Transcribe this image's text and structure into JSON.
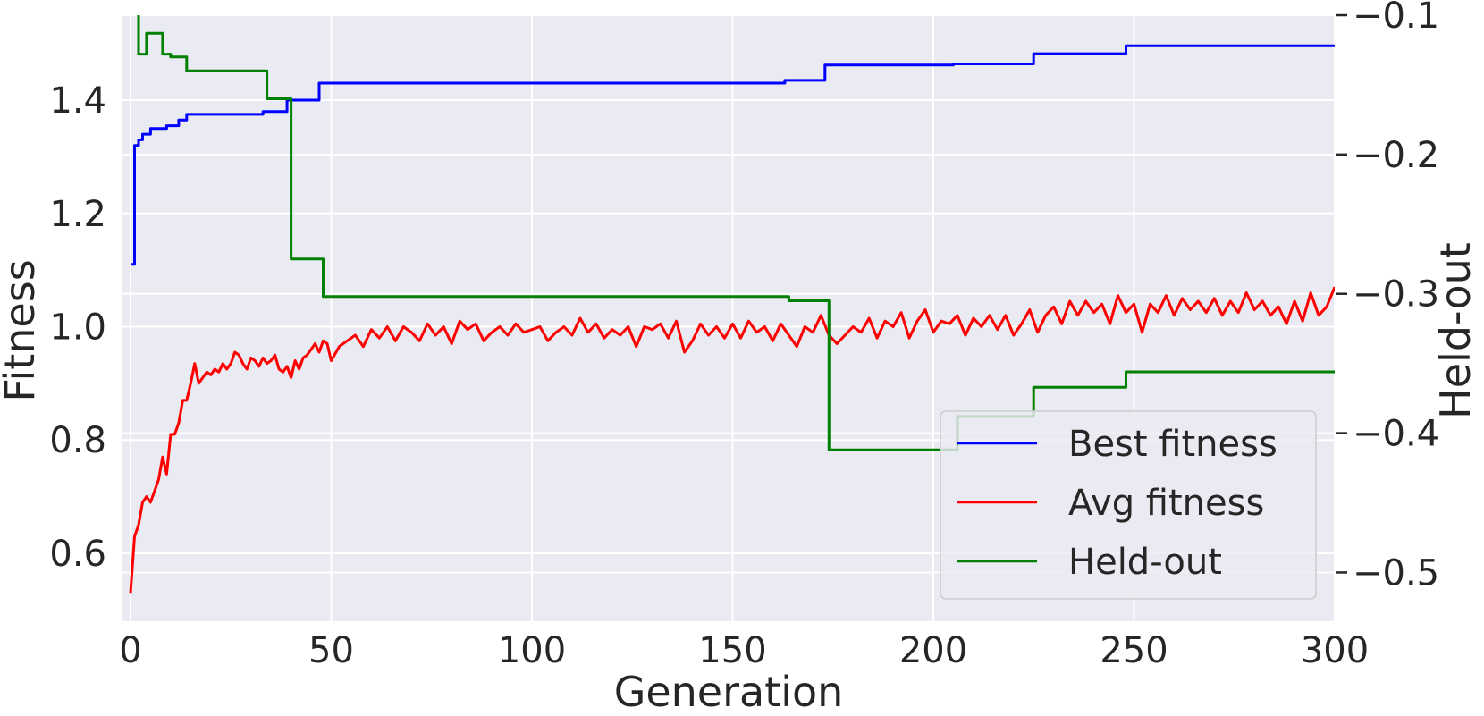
{
  "chart_data": {
    "type": "line",
    "xlabel": "Generation",
    "ylabel": "Fitness",
    "y2label": "Held-out",
    "xlim": [
      -2,
      300
    ],
    "ylim": [
      0.48,
      1.55
    ],
    "y2lim": [
      -0.535,
      -0.1
    ],
    "xticks": [
      0,
      50,
      100,
      150,
      200,
      250,
      300
    ],
    "xtick_labels": [
      "0",
      "50",
      "100",
      "150",
      "200",
      "250",
      "300"
    ],
    "yticks": [
      0.6,
      0.8,
      1.0,
      1.2,
      1.4
    ],
    "ytick_labels": [
      "0.6",
      "0.8",
      "1.0",
      "1.2",
      "1.4"
    ],
    "y2ticks": [
      -0.5,
      -0.4,
      -0.3,
      -0.2,
      -0.1
    ],
    "y2tick_labels": [
      "−0.5",
      "−0.4",
      "−0.3",
      "−0.2",
      "−0.1"
    ],
    "grid": true,
    "legend_position": "lower-right",
    "colors": {
      "best": "#0000ff",
      "avg": "#ff0000",
      "heldout": "#008000",
      "background": "#eaeaf2"
    },
    "series": [
      {
        "name": "Best fitness",
        "axis": "left",
        "color": "#0000ff",
        "interpolation": "step",
        "points": [
          [
            0,
            1.11
          ],
          [
            1,
            1.32
          ],
          [
            2,
            1.33
          ],
          [
            3,
            1.34
          ],
          [
            5,
            1.35
          ],
          [
            9,
            1.355
          ],
          [
            12,
            1.365
          ],
          [
            14,
            1.375
          ],
          [
            33,
            1.38
          ],
          [
            39,
            1.4
          ],
          [
            47,
            1.43
          ],
          [
            163,
            1.435
          ],
          [
            173,
            1.462
          ],
          [
            205,
            1.464
          ],
          [
            225,
            1.482
          ],
          [
            248,
            1.496
          ],
          [
            300,
            1.496
          ]
        ]
      },
      {
        "name": "Avg fitness",
        "axis": "left",
        "color": "#ff0000",
        "interpolation": "linear",
        "points": [
          [
            0,
            0.53
          ],
          [
            1,
            0.63
          ],
          [
            2,
            0.65
          ],
          [
            3,
            0.69
          ],
          [
            4,
            0.7
          ],
          [
            5,
            0.69
          ],
          [
            6,
            0.71
          ],
          [
            7,
            0.73
          ],
          [
            8,
            0.77
          ],
          [
            9,
            0.74
          ],
          [
            10,
            0.81
          ],
          [
            11,
            0.81
          ],
          [
            12,
            0.83
          ],
          [
            13,
            0.87
          ],
          [
            14,
            0.87
          ],
          [
            15,
            0.9
          ],
          [
            16,
            0.935
          ],
          [
            17,
            0.9
          ],
          [
            18,
            0.91
          ],
          [
            19,
            0.92
          ],
          [
            20,
            0.915
          ],
          [
            21,
            0.925
          ],
          [
            22,
            0.92
          ],
          [
            23,
            0.935
          ],
          [
            24,
            0.925
          ],
          [
            25,
            0.935
          ],
          [
            26,
            0.955
          ],
          [
            27,
            0.95
          ],
          [
            28,
            0.935
          ],
          [
            29,
            0.925
          ],
          [
            30,
            0.945
          ],
          [
            31,
            0.94
          ],
          [
            32,
            0.93
          ],
          [
            33,
            0.945
          ],
          [
            34,
            0.935
          ],
          [
            35,
            0.94
          ],
          [
            36,
            0.95
          ],
          [
            37,
            0.925
          ],
          [
            38,
            0.92
          ],
          [
            39,
            0.93
          ],
          [
            40,
            0.91
          ],
          [
            41,
            0.94
          ],
          [
            42,
            0.925
          ],
          [
            43,
            0.945
          ],
          [
            44,
            0.95
          ],
          [
            45,
            0.96
          ],
          [
            46,
            0.97
          ],
          [
            47,
            0.955
          ],
          [
            48,
            0.975
          ],
          [
            49,
            0.97
          ],
          [
            50,
            0.94
          ],
          [
            52,
            0.965
          ],
          [
            54,
            0.975
          ],
          [
            56,
            0.985
          ],
          [
            58,
            0.965
          ],
          [
            60,
            0.995
          ],
          [
            62,
            0.98
          ],
          [
            64,
            1.0
          ],
          [
            66,
            0.975
          ],
          [
            68,
            1.0
          ],
          [
            70,
            0.99
          ],
          [
            72,
            0.975
          ],
          [
            74,
            1.005
          ],
          [
            76,
            0.985
          ],
          [
            78,
            1.0
          ],
          [
            80,
            0.97
          ],
          [
            82,
            1.01
          ],
          [
            84,
            0.995
          ],
          [
            86,
            1.005
          ],
          [
            88,
            0.975
          ],
          [
            90,
            0.99
          ],
          [
            92,
            1.0
          ],
          [
            94,
            0.985
          ],
          [
            96,
            1.005
          ],
          [
            98,
            0.99
          ],
          [
            100,
            0.995
          ],
          [
            102,
            1.0
          ],
          [
            104,
            0.975
          ],
          [
            106,
            0.99
          ],
          [
            108,
            1.0
          ],
          [
            110,
            0.985
          ],
          [
            112,
            1.015
          ],
          [
            114,
            0.99
          ],
          [
            116,
            1.005
          ],
          [
            118,
            0.98
          ],
          [
            120,
            0.995
          ],
          [
            122,
            0.985
          ],
          [
            124,
            1.0
          ],
          [
            126,
            0.965
          ],
          [
            128,
            1.0
          ],
          [
            130,
            0.995
          ],
          [
            132,
            1.005
          ],
          [
            134,
            0.98
          ],
          [
            136,
            1.01
          ],
          [
            138,
            0.955
          ],
          [
            140,
            0.975
          ],
          [
            142,
            1.005
          ],
          [
            144,
            0.985
          ],
          [
            146,
            1.0
          ],
          [
            148,
            0.98
          ],
          [
            150,
            1.005
          ],
          [
            152,
            0.98
          ],
          [
            154,
            1.01
          ],
          [
            156,
            0.99
          ],
          [
            158,
            1.0
          ],
          [
            160,
            0.975
          ],
          [
            162,
            1.005
          ],
          [
            164,
            0.985
          ],
          [
            166,
            0.965
          ],
          [
            168,
            1.0
          ],
          [
            170,
            0.99
          ],
          [
            172,
            1.02
          ],
          [
            174,
            0.985
          ],
          [
            176,
            0.97
          ],
          [
            178,
            0.985
          ],
          [
            180,
            1.0
          ],
          [
            182,
            0.99
          ],
          [
            184,
            1.015
          ],
          [
            186,
            0.98
          ],
          [
            188,
            1.01
          ],
          [
            190,
            1.0
          ],
          [
            192,
            1.025
          ],
          [
            194,
            0.98
          ],
          [
            196,
            1.01
          ],
          [
            198,
            1.03
          ],
          [
            200,
            0.99
          ],
          [
            202,
            1.01
          ],
          [
            204,
            1.005
          ],
          [
            206,
            1.02
          ],
          [
            208,
            0.985
          ],
          [
            210,
            1.015
          ],
          [
            212,
            1.0
          ],
          [
            214,
            1.02
          ],
          [
            216,
            0.995
          ],
          [
            218,
            1.02
          ],
          [
            220,
            0.985
          ],
          [
            222,
            1.005
          ],
          [
            224,
            1.03
          ],
          [
            226,
            0.99
          ],
          [
            228,
            1.02
          ],
          [
            230,
            1.035
          ],
          [
            232,
            1.005
          ],
          [
            234,
            1.045
          ],
          [
            236,
            1.02
          ],
          [
            238,
            1.045
          ],
          [
            240,
            1.025
          ],
          [
            242,
            1.04
          ],
          [
            244,
            1.005
          ],
          [
            246,
            1.055
          ],
          [
            248,
            1.025
          ],
          [
            250,
            1.04
          ],
          [
            252,
            0.99
          ],
          [
            254,
            1.04
          ],
          [
            256,
            1.025
          ],
          [
            258,
            1.055
          ],
          [
            260,
            1.02
          ],
          [
            262,
            1.05
          ],
          [
            264,
            1.03
          ],
          [
            266,
            1.045
          ],
          [
            268,
            1.025
          ],
          [
            270,
            1.05
          ],
          [
            272,
            1.02
          ],
          [
            274,
            1.045
          ],
          [
            276,
            1.025
          ],
          [
            278,
            1.06
          ],
          [
            280,
            1.03
          ],
          [
            282,
            1.045
          ],
          [
            284,
            1.02
          ],
          [
            286,
            1.035
          ],
          [
            288,
            1.005
          ],
          [
            290,
            1.045
          ],
          [
            292,
            1.01
          ],
          [
            294,
            1.06
          ],
          [
            296,
            1.02
          ],
          [
            298,
            1.035
          ],
          [
            300,
            1.07
          ]
        ]
      },
      {
        "name": "Held-out",
        "axis": "right",
        "color": "#008000",
        "interpolation": "step",
        "points": [
          [
            0,
            -0.075
          ],
          [
            2,
            -0.128
          ],
          [
            4,
            -0.113
          ],
          [
            8,
            -0.128
          ],
          [
            10,
            -0.13
          ],
          [
            14,
            -0.14
          ],
          [
            34,
            -0.16
          ],
          [
            40,
            -0.275
          ],
          [
            48,
            -0.302
          ],
          [
            164,
            -0.305
          ],
          [
            174,
            -0.412
          ],
          [
            206,
            -0.388
          ],
          [
            225,
            -0.367
          ],
          [
            248,
            -0.356
          ],
          [
            300,
            -0.356
          ]
        ]
      }
    ]
  }
}
